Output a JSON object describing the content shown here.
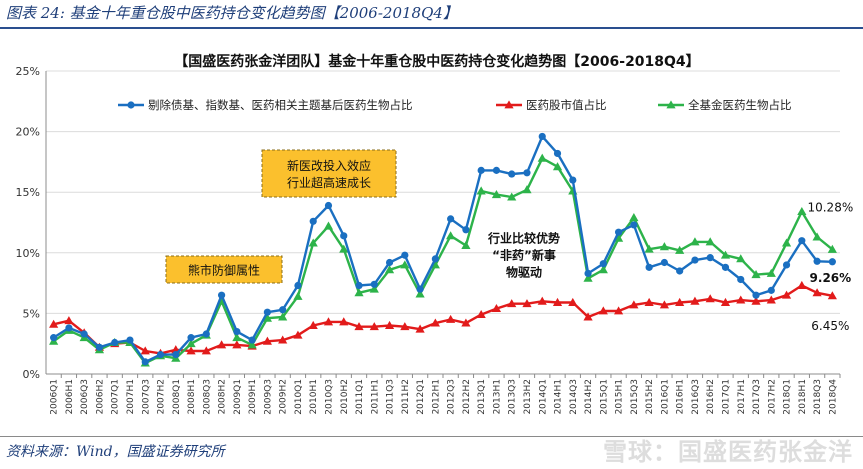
{
  "figure_caption": "图表 24:  基金十年重仓股中医药持仓变化趋势图【2006-2018Q4】",
  "source_note": "资料来源：Wind，国盛证券研究所",
  "watermark": "雪球：国盛医药张金洋",
  "colors": {
    "blue": "#1a6fc1",
    "red": "#e21b1b",
    "green": "#2db34a",
    "callout_fill": "#fbc02d",
    "axis": "#8c8c8c",
    "grid": "#dcdcdc",
    "caption": "#1f3f7a"
  },
  "chart_data": {
    "type": "line",
    "title": "【国盛医药张金洋团队】基金十年重仓股中医药持仓变化趋势图【2006-2018Q4】",
    "xlabel": "",
    "ylabel": "",
    "ylim": [
      0,
      25
    ],
    "yticks": [
      "0%",
      "5%",
      "10%",
      "15%",
      "20%",
      "25%"
    ],
    "grid": true,
    "legend_position": "top",
    "categories": [
      "2006Q1",
      "2006H1",
      "2006Q3",
      "2006H2",
      "2007Q1",
      "2007H1",
      "2007Q3",
      "2007H2",
      "2008Q1",
      "2008H1",
      "2008Q3",
      "2008H2",
      "2009Q1",
      "2009H1",
      "2009Q3",
      "2009H2",
      "2010Q1",
      "2010H1",
      "2010Q3",
      "2010H2",
      "2011Q1",
      "2011H1",
      "2011Q3",
      "2011H2",
      "2012Q1",
      "2012H1",
      "2012Q3",
      "2012H2",
      "2013Q1",
      "2013H1",
      "2013Q3",
      "2013H2",
      "2014Q1",
      "2014H1",
      "2014Q3",
      "2014H2",
      "2015Q1",
      "2015H1",
      "2015Q3",
      "2015H2",
      "2016Q1",
      "2016H1",
      "2016Q3",
      "2016H2",
      "2017Q1",
      "2017H1",
      "2017Q3",
      "2017H2",
      "2018Q1",
      "2018H1",
      "2018Q3",
      "2018Q4"
    ],
    "series": [
      {
        "name": "剔除债基、指数基、医药相关主题基后医药生物占比",
        "color": "#1a6fc1",
        "marker": "circle",
        "values": [
          3.0,
          3.8,
          3.3,
          2.2,
          2.6,
          2.8,
          1.0,
          1.6,
          1.6,
          3.0,
          3.3,
          6.5,
          3.5,
          2.8,
          5.1,
          5.3,
          7.3,
          12.6,
          13.9,
          11.4,
          7.3,
          7.4,
          9.2,
          9.8,
          7.0,
          9.5,
          12.8,
          11.9,
          16.8,
          16.8,
          16.5,
          16.6,
          19.6,
          18.2,
          16.0,
          8.3,
          9.1,
          11.7,
          12.3,
          8.8,
          9.2,
          8.5,
          9.4,
          9.6,
          8.8,
          7.8,
          6.5,
          6.9,
          9.0,
          11.0,
          9.3,
          9.26
        ]
      },
      {
        "name": "医药股市值占比",
        "color": "#e21b1b",
        "marker": "triangle",
        "values": [
          4.1,
          4.4,
          3.4,
          2.2,
          2.5,
          2.6,
          1.9,
          1.7,
          2.0,
          1.9,
          1.9,
          2.4,
          2.4,
          2.3,
          2.7,
          2.8,
          3.2,
          4.0,
          4.3,
          4.3,
          3.9,
          3.9,
          4.0,
          3.9,
          3.7,
          4.2,
          4.5,
          4.2,
          4.9,
          5.4,
          5.8,
          5.8,
          6.0,
          5.9,
          5.9,
          4.7,
          5.2,
          5.2,
          5.7,
          5.9,
          5.7,
          5.9,
          6.0,
          6.2,
          5.9,
          6.1,
          6.0,
          6.1,
          6.5,
          7.3,
          6.7,
          6.45
        ]
      },
      {
        "name": "全基金医药生物占比",
        "color": "#2db34a",
        "marker": "triangle",
        "values": [
          2.7,
          3.6,
          3.0,
          2.0,
          2.6,
          2.6,
          0.9,
          1.5,
          1.3,
          2.5,
          3.2,
          6.0,
          3.0,
          2.4,
          4.6,
          4.7,
          6.4,
          10.8,
          12.2,
          10.3,
          6.7,
          7.0,
          8.6,
          9.0,
          6.6,
          9.0,
          11.4,
          10.6,
          15.1,
          14.8,
          14.6,
          15.2,
          17.8,
          17.1,
          15.1,
          7.9,
          8.6,
          11.2,
          12.9,
          10.3,
          10.5,
          10.2,
          10.9,
          10.9,
          9.8,
          9.5,
          8.2,
          8.3,
          10.8,
          13.4,
          11.3,
          10.28
        ]
      }
    ],
    "end_labels": {
      "blue": "9.26%",
      "red": "6.45%",
      "green": "10.28%"
    },
    "annotations": [
      {
        "id": "policy",
        "lines": [
          "新医改投入效应",
          "行业超高速成长"
        ]
      },
      {
        "id": "bear",
        "lines": [
          "熊市防御属性"
        ]
      },
      {
        "id": "industry",
        "lines": [
          "行业比较优势",
          "“非药”新事",
          "物驱动"
        ]
      }
    ]
  }
}
